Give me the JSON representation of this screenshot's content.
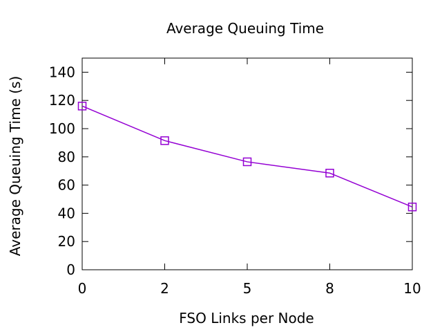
{
  "chart_data": {
    "type": "line",
    "title": "Average Queuing Time",
    "xlabel": "FSO Links per Node",
    "ylabel": "Average Queuing Time (s)",
    "categories": [
      "0",
      "2",
      "5",
      "8",
      "10"
    ],
    "series": [
      {
        "values": [
          116,
          91.5,
          76.5,
          68.5,
          44.5
        ],
        "color": "#9400d3",
        "marker": "square"
      }
    ],
    "ylim": [
      0,
      150
    ],
    "yticks": [
      0,
      20,
      40,
      60,
      80,
      100,
      120,
      140
    ],
    "grid": false,
    "legend": "none"
  }
}
